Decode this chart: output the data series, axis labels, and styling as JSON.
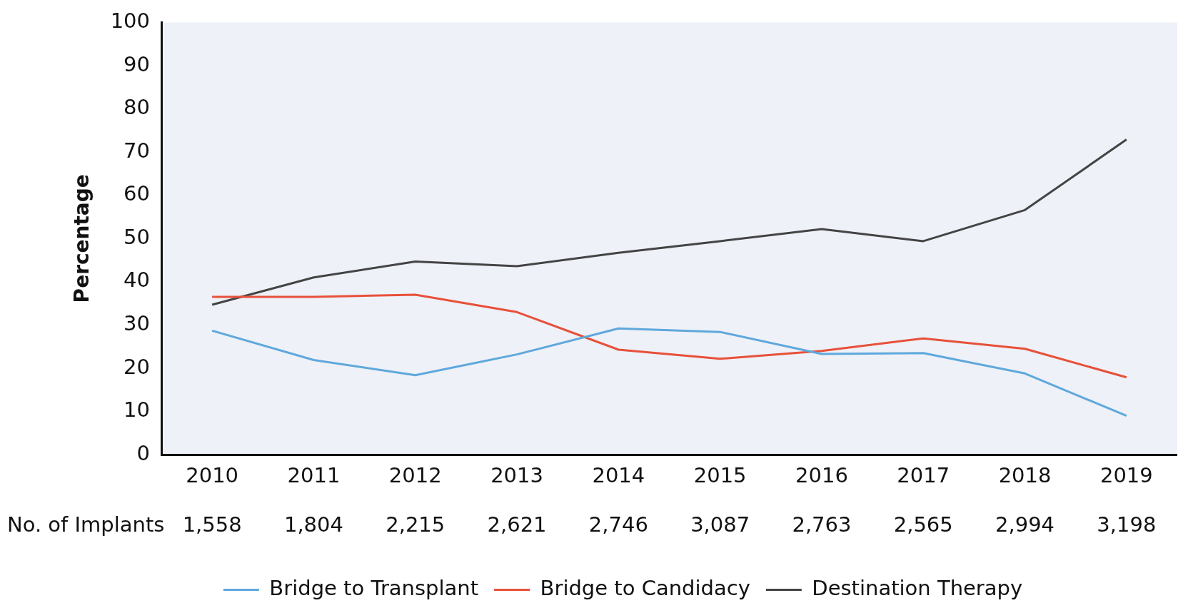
{
  "chart_data": {
    "type": "line",
    "ylabel": "Percentage",
    "categories": [
      "2010",
      "2011",
      "2012",
      "2013",
      "2014",
      "2015",
      "2016",
      "2017",
      "2018",
      "2019"
    ],
    "series": [
      {
        "name": "Bridge to Transplant",
        "color": "#5fa8dc",
        "values": [
          28.7,
          21.9,
          18.4,
          23.2,
          29.2,
          28.4,
          23.3,
          23.5,
          18.8,
          9.0
        ]
      },
      {
        "name": "Bridge to Candidacy",
        "color": "#e8503a",
        "values": [
          36.5,
          36.5,
          37,
          33,
          24.3,
          22.2,
          24,
          26.9,
          24.5,
          17.9
        ]
      },
      {
        "name": "Destination Therapy",
        "color": "#444444",
        "values": [
          34.7,
          41,
          44.7,
          43.6,
          46.7,
          49.4,
          52.2,
          49.4,
          56.6,
          72.9
        ]
      }
    ],
    "ylim": [
      0,
      100
    ],
    "yticks": [
      0,
      10,
      20,
      30,
      40,
      50,
      60,
      70,
      80,
      90,
      100
    ],
    "grid": false,
    "legend": "bottom",
    "marker": "none",
    "line_style": "solid",
    "annotations": [
      "No. of Implants",
      "1,558",
      "1,804",
      "2,215",
      "2,621",
      "2,746",
      "3,087",
      "2,763",
      "2,565",
      "2,994",
      "3,198"
    ]
  }
}
